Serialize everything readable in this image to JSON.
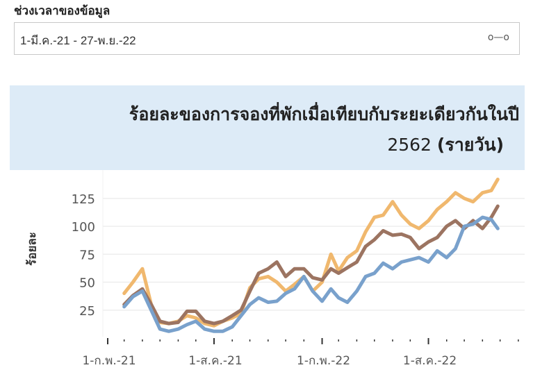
{
  "filter": {
    "label": "ช่วงเวลาของข้อมูล",
    "value": "1-มี.ค.-21 - 27-พ.ย.-22",
    "icon": "range-slider-icon"
  },
  "chart_data": {
    "type": "line",
    "title_line1": "ร้อยละของการจองที่พักเมื่อเทียบกับระยะเดียวกันในปี",
    "title_line2_num": "2562",
    "title_line2_text": "(รายวัน)",
    "ylabel": "ร้อยละ",
    "xlabel": "",
    "ylim": [
      0,
      147
    ],
    "yticks": [
      25,
      50,
      75,
      100,
      125
    ],
    "xlim": [
      "2021-01-01",
      "2022-12-31"
    ],
    "xticks": [
      {
        "date": "2021-02-01",
        "label": "1-ก.พ.-21"
      },
      {
        "date": "2021-08-01",
        "label": "1-ส.ค.-21"
      },
      {
        "date": "2022-02-01",
        "label": "1-ก.พ.-22"
      },
      {
        "date": "2022-08-01",
        "label": "1-ส.ค.-22"
      }
    ],
    "grid": true,
    "x": [
      "2021-03-01",
      "2021-03-16",
      "2021-04-01",
      "2021-04-16",
      "2021-05-01",
      "2021-05-16",
      "2021-06-01",
      "2021-06-16",
      "2021-07-01",
      "2021-07-16",
      "2021-08-01",
      "2021-08-16",
      "2021-09-01",
      "2021-09-16",
      "2021-10-01",
      "2021-10-16",
      "2021-11-01",
      "2021-11-16",
      "2021-12-01",
      "2021-12-16",
      "2022-01-01",
      "2022-01-16",
      "2022-02-01",
      "2022-02-16",
      "2022-03-01",
      "2022-03-16",
      "2022-04-01",
      "2022-04-16",
      "2022-05-01",
      "2022-05-16",
      "2022-06-01",
      "2022-06-16",
      "2022-07-01",
      "2022-07-16",
      "2022-08-01",
      "2022-08-16",
      "2022-09-01",
      "2022-09-16",
      "2022-10-01",
      "2022-10-16",
      "2022-11-01",
      "2022-11-16",
      "2022-11-27"
    ],
    "series": [
      {
        "color": "#f0b86e",
        "values": [
          40,
          50,
          62,
          30,
          14,
          13,
          15,
          20,
          18,
          13,
          11,
          15,
          18,
          22,
          45,
          53,
          55,
          50,
          42,
          48,
          55,
          42,
          50,
          75,
          60,
          72,
          78,
          95,
          108,
          110,
          122,
          110,
          102,
          98,
          105,
          115,
          122,
          130,
          125,
          122,
          130,
          132,
          142
        ]
      },
      {
        "color": "#9c7461",
        "values": [
          30,
          38,
          44,
          30,
          15,
          13,
          14,
          24,
          24,
          15,
          13,
          15,
          20,
          25,
          42,
          58,
          62,
          68,
          55,
          62,
          62,
          54,
          52,
          62,
          58,
          63,
          68,
          82,
          88,
          96,
          92,
          93,
          90,
          80,
          86,
          90,
          100,
          105,
          98,
          105,
          98,
          108,
          118
        ]
      },
      {
        "color": "#79a1cc",
        "values": [
          28,
          37,
          42,
          25,
          8,
          6,
          8,
          12,
          15,
          8,
          6,
          6,
          10,
          20,
          30,
          36,
          32,
          33,
          40,
          44,
          55,
          42,
          33,
          44,
          36,
          32,
          42,
          55,
          58,
          67,
          62,
          68,
          70,
          72,
          68,
          78,
          72,
          80,
          100,
          102,
          108,
          106,
          98
        ]
      }
    ]
  }
}
